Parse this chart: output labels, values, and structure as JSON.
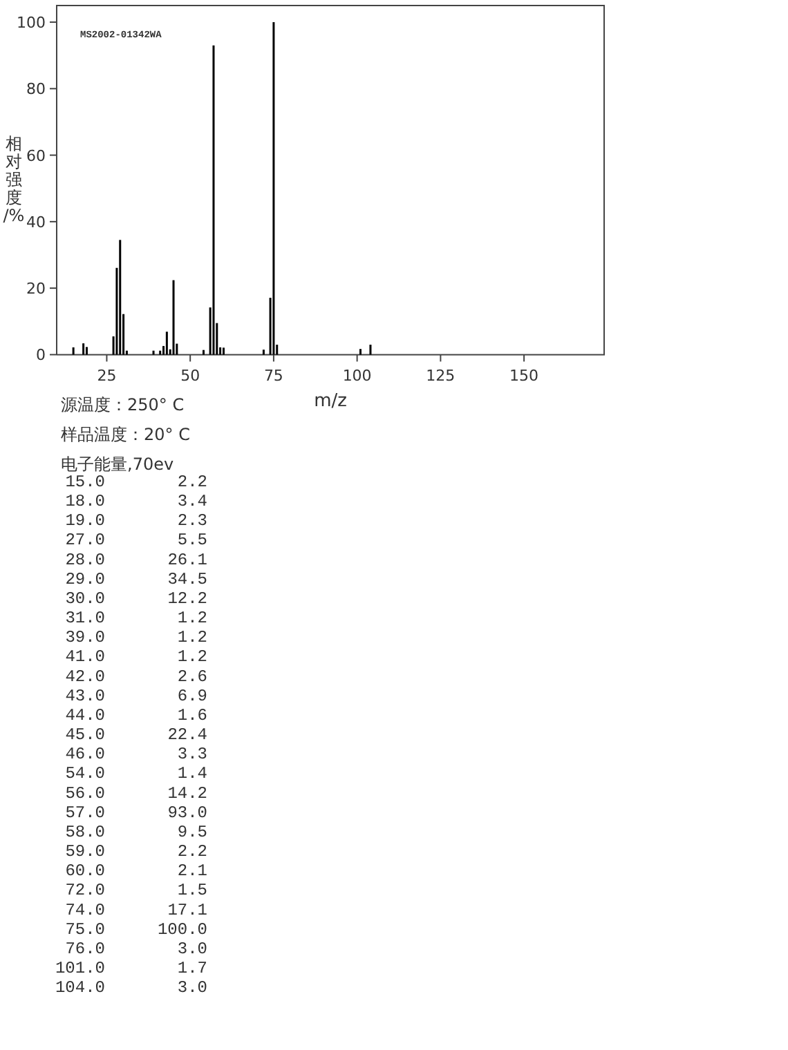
{
  "chart_data": [
    {
      "type": "bar",
      "xlabel": "m/z",
      "ylabel": "相对强度/%",
      "x": [
        15,
        18,
        19,
        27,
        28,
        29,
        30,
        31,
        39,
        41,
        42,
        43,
        44,
        45,
        46,
        54,
        56,
        57,
        58,
        59,
        60,
        72,
        74,
        75,
        76,
        101,
        104
      ],
      "values": [
        2.2,
        3.4,
        2.3,
        5.5,
        26.1,
        34.5,
        12.2,
        1.2,
        1.2,
        1.2,
        2.6,
        6.9,
        1.6,
        22.4,
        3.3,
        1.4,
        14.2,
        93.0,
        9.5,
        2.2,
        2.1,
        1.5,
        17.1,
        100.0,
        3.0,
        1.7,
        3.0
      ],
      "color": "#000000",
      "xlim": [
        10,
        174
      ],
      "xticks": [
        25,
        50,
        75,
        100,
        125,
        150
      ],
      "ylim": [
        0,
        105
      ],
      "yticks": [
        0,
        20,
        40,
        60,
        80,
        100
      ],
      "annotations": [
        "MS2002-01342WA"
      ]
    },
    {
      "type": "other",
      "annotations": [
        "源温度：250° C",
        "样品温度：20° C",
        "电子能量,70ev",
        "15.0",
        "2.2",
        "18.0",
        "3.4",
        "19.0",
        "2.3",
        "27.0",
        "5.5",
        "28.0",
        "26.1",
        "29.0",
        "34.5",
        "30.0",
        "12.2",
        "31.0",
        "1.2",
        "39.0",
        "1.2",
        "41.0",
        "1.2",
        "42.0",
        "2.6",
        "43.0",
        "6.9",
        "44.0",
        "1.6",
        "45.0",
        "22.4",
        "46.0",
        "3.3",
        "54.0",
        "1.4",
        "56.0",
        "14.2",
        "57.0",
        "93.0",
        "58.0",
        "9.5",
        "59.0",
        "2.2",
        "60.0",
        "2.1",
        "72.0",
        "1.5",
        "74.0",
        "17.1",
        "75.0",
        "100.0",
        "76.0",
        "3.0",
        "101.0",
        "1.7",
        "104.0",
        "3.0"
      ]
    }
  ]
}
